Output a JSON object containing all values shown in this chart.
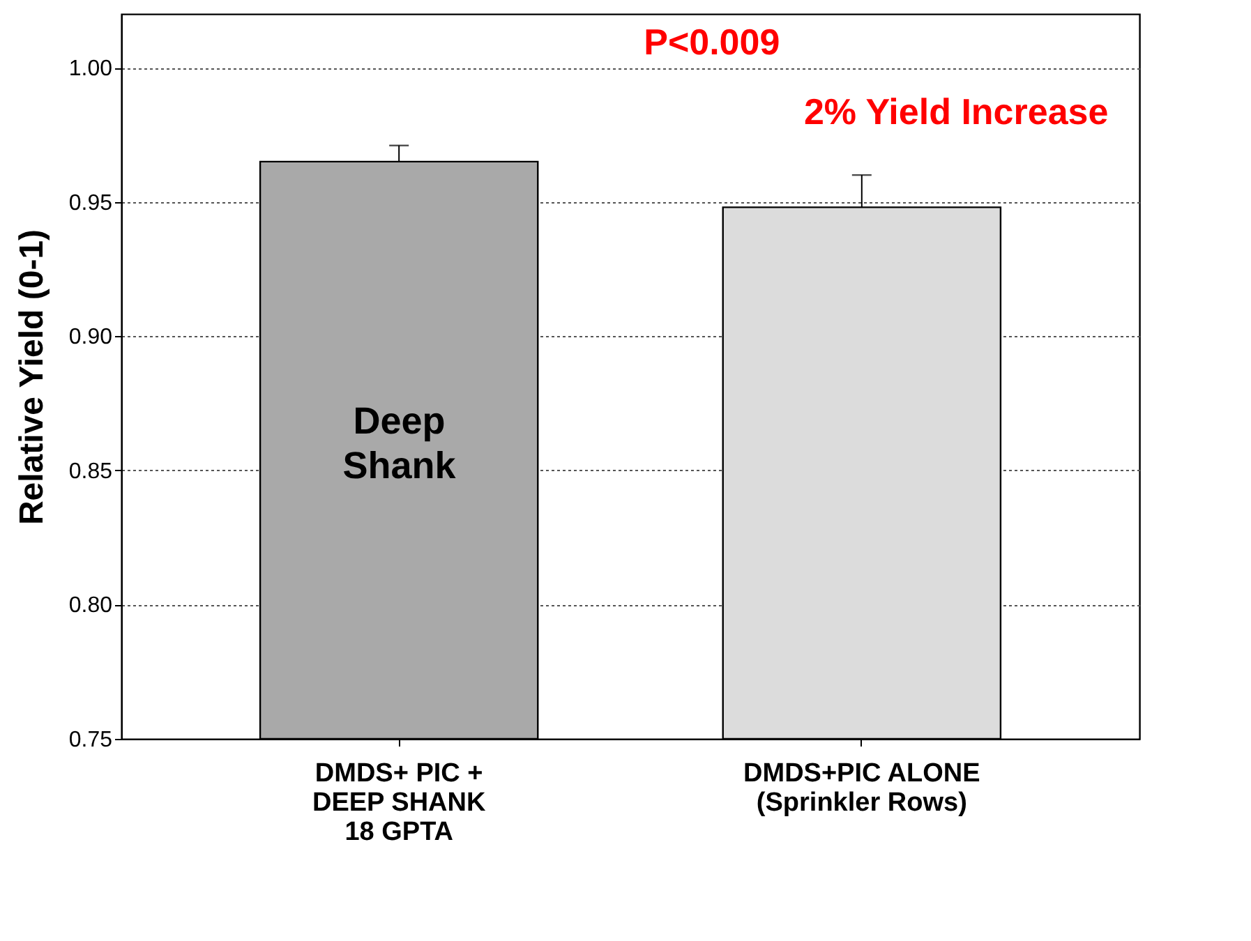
{
  "chart_data": {
    "type": "bar",
    "ylabel": "Relative Yield (0-1)",
    "categories": [
      "DMDS+ PIC +\nDEEP SHANK\n18 GPTA",
      "DMDS+PIC ALONE\n(Sprinkler Rows)"
    ],
    "values": [
      0.965,
      0.948
    ],
    "errors": [
      0.006,
      0.012
    ],
    "colors": [
      "#a9a9a9",
      "#dcdcdc"
    ],
    "ylim": [
      0.75,
      1.02
    ],
    "yticks": [
      {
        "value": 0.75,
        "label": "0.75"
      },
      {
        "value": 0.8,
        "label": "0.80"
      },
      {
        "value": 0.85,
        "label": "0.85"
      },
      {
        "value": 0.9,
        "label": "0.90"
      },
      {
        "value": 0.95,
        "label": "0.95"
      },
      {
        "value": 1.0,
        "label": "1.00"
      }
    ],
    "grid": "y",
    "annotations": [
      "P<0.009",
      "2% Yield Increase",
      "Deep\nShank"
    ]
  }
}
